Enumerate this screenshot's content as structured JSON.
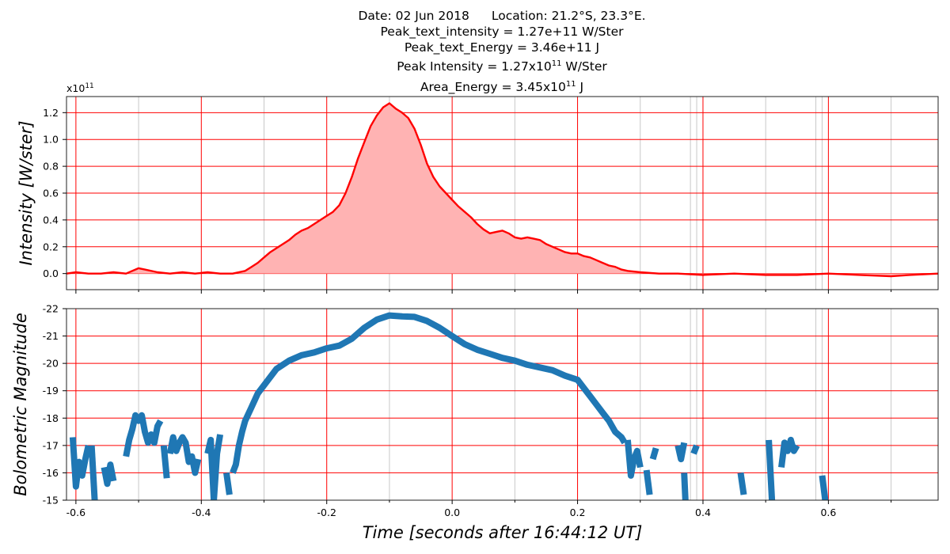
{
  "header": {
    "date": "Date: 02 Jun 2018",
    "location": "Location: 21.2°S, 23.3°E.",
    "peak_text_intensity": "Peak_text_intensity = 1.27e+11 W/Ster",
    "peak_text_energy": "Peak_text_Energy = 3.46e+11 J",
    "peak_intensity_prefix": "Peak Intensity = 1.27x10",
    "peak_intensity_exp": "11",
    "peak_intensity_unit": " W/Ster",
    "area_energy_prefix": "Area_Energy = 3.45x10",
    "area_energy_exp": "11",
    "area_energy_unit": " J"
  },
  "colors": {
    "intensity_line": "#ff0000",
    "intensity_fill": "#ffb3b3",
    "magnitude_line": "#1f77b4",
    "major_grid": "#ff0000",
    "minor_grid": "#c8c8c8"
  },
  "chart_data": [
    {
      "type": "area",
      "ylabel": "Intensity [W/ster]",
      "offset_label": "x10",
      "offset_exp": "11",
      "xlim": [
        -0.615,
        0.775
      ],
      "ylim": [
        -0.12,
        1.32
      ],
      "yticks": [
        0.0,
        0.2,
        0.4,
        0.6,
        0.8,
        1.0,
        1.2
      ],
      "ytick_labels": [
        "0.0",
        "0.2",
        "0.4",
        "0.6",
        "0.8",
        "1.0",
        "1.2"
      ],
      "grid": true,
      "series": [
        {
          "x": [
            -0.615,
            -0.6,
            -0.58,
            -0.56,
            -0.54,
            -0.52,
            -0.5,
            -0.49,
            -0.47,
            -0.45,
            -0.43,
            -0.41,
            -0.39,
            -0.37,
            -0.35,
            -0.33,
            -0.32,
            -0.31,
            -0.3,
            -0.29,
            -0.28,
            -0.27,
            -0.26,
            -0.25,
            -0.24,
            -0.23,
            -0.22,
            -0.21,
            -0.2,
            -0.19,
            -0.18,
            -0.17,
            -0.16,
            -0.15,
            -0.14,
            -0.13,
            -0.12,
            -0.11,
            -0.1,
            -0.09,
            -0.08,
            -0.07,
            -0.06,
            -0.05,
            -0.04,
            -0.03,
            -0.02,
            -0.01,
            0.0,
            0.01,
            0.02,
            0.03,
            0.04,
            0.05,
            0.06,
            0.07,
            0.08,
            0.09,
            0.1,
            0.11,
            0.12,
            0.13,
            0.14,
            0.15,
            0.16,
            0.17,
            0.18,
            0.19,
            0.2,
            0.21,
            0.22,
            0.23,
            0.24,
            0.25,
            0.26,
            0.27,
            0.28,
            0.3,
            0.33,
            0.36,
            0.4,
            0.45,
            0.5,
            0.55,
            0.6,
            0.65,
            0.7,
            0.73,
            0.775
          ],
          "y": [
            0.0,
            0.01,
            0.0,
            0.0,
            0.01,
            0.0,
            0.04,
            0.03,
            0.01,
            0.0,
            0.01,
            0.0,
            0.01,
            0.0,
            0.0,
            0.02,
            0.05,
            0.08,
            0.12,
            0.16,
            0.19,
            0.22,
            0.25,
            0.29,
            0.32,
            0.34,
            0.37,
            0.4,
            0.43,
            0.46,
            0.51,
            0.6,
            0.72,
            0.86,
            0.98,
            1.1,
            1.18,
            1.24,
            1.27,
            1.23,
            1.2,
            1.16,
            1.08,
            0.96,
            0.82,
            0.72,
            0.65,
            0.6,
            0.55,
            0.5,
            0.46,
            0.42,
            0.37,
            0.33,
            0.3,
            0.31,
            0.32,
            0.3,
            0.27,
            0.26,
            0.27,
            0.26,
            0.25,
            0.22,
            0.2,
            0.18,
            0.16,
            0.15,
            0.15,
            0.13,
            0.12,
            0.1,
            0.08,
            0.06,
            0.05,
            0.03,
            0.02,
            0.01,
            0.0,
            0.0,
            -0.01,
            0.0,
            -0.01,
            -0.01,
            0.0,
            -0.01,
            -0.02,
            -0.01,
            0.0
          ]
        }
      ]
    },
    {
      "type": "line",
      "xlabel": "Time [seconds after 16:44:12 UT]",
      "ylabel": "Bolometric Magnitude",
      "xlim": [
        -0.615,
        0.775
      ],
      "ylim": [
        -15,
        -22
      ],
      "yticks": [
        -15,
        -16,
        -17,
        -18,
        -19,
        -20,
        -21,
        -22
      ],
      "ytick_labels": [
        "-15",
        "-16",
        "-17",
        "-18",
        "-19",
        "-20",
        "-21",
        "-22"
      ],
      "xticks": [
        -0.6,
        -0.4,
        -0.2,
        0.0,
        0.2,
        0.4,
        0.6
      ],
      "xtick_labels": [
        "-0.6",
        "-0.4",
        "-0.2",
        "0.0",
        "0.2",
        "0.4",
        "0.6"
      ],
      "grid": true,
      "series": [
        {
          "segments": [
            {
              "x": [
                -0.605,
                -0.6,
                -0.595,
                -0.59,
                -0.585,
                -0.58
              ],
              "y": [
                -17.3,
                -15.5,
                -16.4,
                -15.9,
                -16.5,
                -17.0
              ]
            },
            {
              "x": [
                -0.575,
                -0.57
              ],
              "y": [
                -17.0,
                -15.0
              ]
            },
            {
              "x": [
                -0.555,
                -0.55,
                -0.545,
                -0.54
              ],
              "y": [
                -16.2,
                -15.6,
                -16.3,
                -15.7
              ]
            },
            {
              "x": [
                -0.52,
                -0.515,
                -0.51,
                -0.505,
                -0.5,
                -0.495,
                -0.49,
                -0.485,
                -0.48,
                -0.475,
                -0.47,
                -0.465
              ],
              "y": [
                -16.6,
                -17.2,
                -17.6,
                -18.1,
                -17.9,
                -18.1,
                -17.5,
                -17.1,
                -17.4,
                -17.1,
                -17.7,
                -17.9
              ]
            },
            {
              "x": [
                -0.46,
                -0.455
              ],
              "y": [
                -17.0,
                -15.8
              ]
            },
            {
              "x": [
                -0.45,
                -0.445,
                -0.44,
                -0.435,
                -0.43,
                -0.425,
                -0.42,
                -0.415,
                -0.41,
                -0.405
              ],
              "y": [
                -16.7,
                -17.3,
                -16.8,
                -17.1,
                -17.3,
                -17.1,
                -16.4,
                -16.6,
                -16.0,
                -16.5
              ]
            },
            {
              "x": [
                -0.39,
                -0.385,
                -0.38,
                -0.375,
                -0.37
              ],
              "y": [
                -16.7,
                -17.2,
                -15.0,
                -16.7,
                -17.4
              ]
            },
            {
              "x": [
                -0.36,
                -0.355
              ],
              "y": [
                -16.0,
                -15.2
              ]
            },
            {
              "x": [
                -0.35,
                -0.345,
                -0.34,
                -0.335,
                -0.33,
                -0.32,
                -0.31,
                -0.3,
                -0.28,
                -0.26,
                -0.24,
                -0.22,
                -0.2,
                -0.18,
                -0.16,
                -0.14,
                -0.12,
                -0.1,
                -0.08,
                -0.06,
                -0.04,
                -0.02,
                0.0,
                0.02,
                0.04,
                0.06,
                0.08,
                0.1,
                0.12,
                0.14,
                0.16,
                0.18,
                0.2,
                0.21,
                0.22,
                0.23,
                0.24,
                0.25,
                0.26,
                0.27,
                0.275
              ],
              "y": [
                -16.0,
                -16.3,
                -17.0,
                -17.5,
                -17.9,
                -18.4,
                -18.9,
                -19.2,
                -19.8,
                -20.1,
                -20.3,
                -20.4,
                -20.55,
                -20.65,
                -20.9,
                -21.3,
                -21.6,
                -21.75,
                -21.72,
                -21.7,
                -21.55,
                -21.3,
                -21.0,
                -20.7,
                -20.5,
                -20.35,
                -20.2,
                -20.1,
                -19.95,
                -19.85,
                -19.75,
                -19.55,
                -19.4,
                -19.1,
                -18.8,
                -18.5,
                -18.2,
                -17.9,
                -17.5,
                -17.3,
                -17.1
              ]
            },
            {
              "x": [
                0.28,
                0.285,
                0.29,
                0.295,
                0.3
              ],
              "y": [
                -17.2,
                -15.9,
                -16.5,
                -16.8,
                -16.2
              ]
            },
            {
              "x": [
                0.31,
                0.315
              ],
              "y": [
                -16.1,
                -15.2
              ]
            },
            {
              "x": [
                0.32,
                0.325
              ],
              "y": [
                -16.5,
                -16.9
              ]
            },
            {
              "x": [
                0.36,
                0.365,
                0.37
              ],
              "y": [
                -17.0,
                -16.5,
                -17.1
              ]
            },
            {
              "x": [
                0.37,
                0.372
              ],
              "y": [
                -16.0,
                -15.0
              ]
            },
            {
              "x": [
                0.385,
                0.39
              ],
              "y": [
                -16.7,
                -17.0
              ]
            },
            {
              "x": [
                0.46,
                0.465
              ],
              "y": [
                -16.0,
                -15.2
              ]
            },
            {
              "x": [
                0.505,
                0.51
              ],
              "y": [
                -17.2,
                -15.0
              ]
            },
            {
              "x": [
                0.525,
                0.53,
                0.535,
                0.54,
                0.545,
                0.55
              ],
              "y": [
                -16.2,
                -17.1,
                -16.8,
                -17.2,
                -16.8,
                -17.0
              ]
            },
            {
              "x": [
                0.59,
                0.595
              ],
              "y": [
                -15.9,
                -15.0
              ]
            }
          ]
        }
      ]
    }
  ]
}
